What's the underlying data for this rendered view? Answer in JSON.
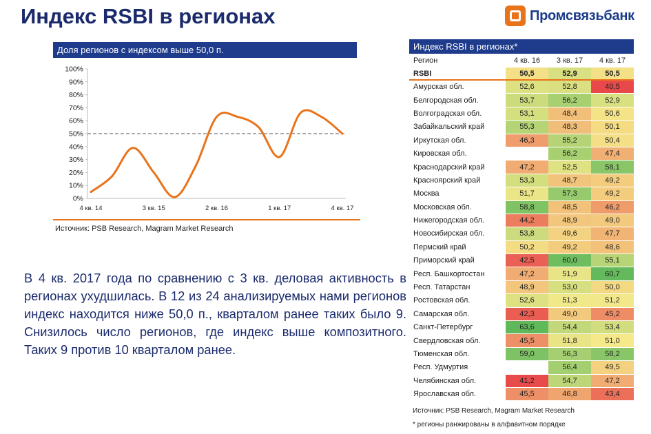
{
  "page": {
    "title": "Индекс RSBI в регионах",
    "logo_text": "Промсвязьбанк"
  },
  "chart": {
    "header": "Доля регионов с индексом выше  50,0 п.",
    "source": "Источник: PSB Research, Magram Market Research"
  },
  "chart_data": {
    "type": "line",
    "title": "Доля регионов с индексом выше  50,0 п.",
    "y_tick_labels": [
      "0%",
      "10%",
      "20%",
      "30%",
      "40%",
      "50%",
      "60%",
      "70%",
      "80%",
      "90%",
      "100%"
    ],
    "x_tick_labels": [
      "4 кв. 14",
      "3 кв. 15",
      "2 кв. 16",
      "1 кв. 17",
      "4 кв. 17"
    ],
    "ylim": [
      0,
      100
    ],
    "reference_line": 50,
    "grid": false,
    "series": [
      {
        "color": "#e8731a",
        "x": [
          0,
          1,
          2,
          3,
          4,
          5,
          6,
          7,
          8,
          9,
          10,
          11,
          12
        ],
        "values": [
          5,
          17,
          39,
          20,
          1,
          25,
          63,
          63,
          55,
          32,
          66,
          63,
          50
        ]
      }
    ]
  },
  "body_text": "В 4 кв. 2017 года по сравнению с 3 кв. деловая активность в регионах ухудшилась. В 12 из 24 анализируемых нами регионов индекс находится ниже 50,0 п., кварталом ранее таких было 9. Снизилось число регионов, где индекс выше композитного. Таких 9 против 10 кварталом ранее.",
  "table": {
    "header": "Индекс RSBI в регионах*",
    "columns": [
      "Регион",
      "4 кв. 16",
      "3 кв. 17",
      "4 кв. 17"
    ],
    "rsbi": {
      "name": "RSBI",
      "values": [
        "50,5",
        "52,9",
        "50,5"
      ]
    },
    "rows": [
      {
        "name": "Амурская обл.",
        "values": [
          "52,6",
          "52,8",
          "40,5"
        ]
      },
      {
        "name": "Белгородская обл.",
        "values": [
          "53,7",
          "56,2",
          "52,9"
        ]
      },
      {
        "name": "Волгоградская обл.",
        "values": [
          "53,1",
          "48,4",
          "50,6"
        ]
      },
      {
        "name": "Забайкальский край",
        "values": [
          "55,3",
          "48,3",
          "50,1"
        ]
      },
      {
        "name": "Иркутская обл.",
        "values": [
          "46,3",
          "55,2",
          "50,4"
        ]
      },
      {
        "name": "Кировская обл.",
        "values": [
          "",
          "56,2",
          "47,4"
        ]
      },
      {
        "name": "Краснодарский край",
        "values": [
          "47,2",
          "52,5",
          "58,1"
        ]
      },
      {
        "name": "Красноярский край",
        "values": [
          "53,3",
          "48,7",
          "49,2"
        ]
      },
      {
        "name": "Москва",
        "values": [
          "51,7",
          "57,3",
          "49,2"
        ]
      },
      {
        "name": "Московская обл.",
        "values": [
          "58,8",
          "48,5",
          "46,2"
        ]
      },
      {
        "name": "Нижегородская обл.",
        "values": [
          "44,2",
          "48,9",
          "49,0"
        ]
      },
      {
        "name": "Новосибирская обл.",
        "values": [
          "53,8",
          "49,6",
          "47,7"
        ]
      },
      {
        "name": "Пермский край",
        "values": [
          "50,2",
          "49,2",
          "48,6"
        ]
      },
      {
        "name": "Приморский край",
        "values": [
          "42,5",
          "60,0",
          "55,1"
        ]
      },
      {
        "name": "Респ. Башкортостан",
        "values": [
          "47,2",
          "51,9",
          "60,7"
        ]
      },
      {
        "name": "Респ. Татарстан",
        "values": [
          "48,9",
          "53,0",
          "50,0"
        ]
      },
      {
        "name": "Ростовская обл.",
        "values": [
          "52,6",
          "51,3",
          "51,2"
        ]
      },
      {
        "name": "Самарская обл.",
        "values": [
          "42,3",
          "49,0",
          "45,2"
        ]
      },
      {
        "name": "Санкт-Петербург",
        "values": [
          "63,6",
          "54,4",
          "53,4"
        ]
      },
      {
        "name": "Свердловская обл.",
        "values": [
          "45,5",
          "51,8",
          "51,0"
        ]
      },
      {
        "name": "Тюменская обл.",
        "values": [
          "59,0",
          "56,3",
          "58,2"
        ]
      },
      {
        "name": "Респ. Удмуртия",
        "values": [
          "",
          "56,4",
          "49,5"
        ]
      },
      {
        "name": "Челябинская обл.",
        "values": [
          "41,2",
          "54,7",
          "47,2"
        ]
      },
      {
        "name": "Ярославская обл.",
        "values": [
          "45,5",
          "46,8",
          "43,4"
        ]
      }
    ],
    "source": "Источник: PSB Research, Magram Market Research",
    "note": "* регионы ранжированы в алфавитном порядке"
  },
  "colors": {
    "header_bg": "#1f3c8c",
    "title": "#1a2a6c",
    "accent": "#e8731a",
    "scale_low": "#e8484a",
    "scale_mid": "#f5e98a",
    "scale_high": "#5fb85a"
  }
}
